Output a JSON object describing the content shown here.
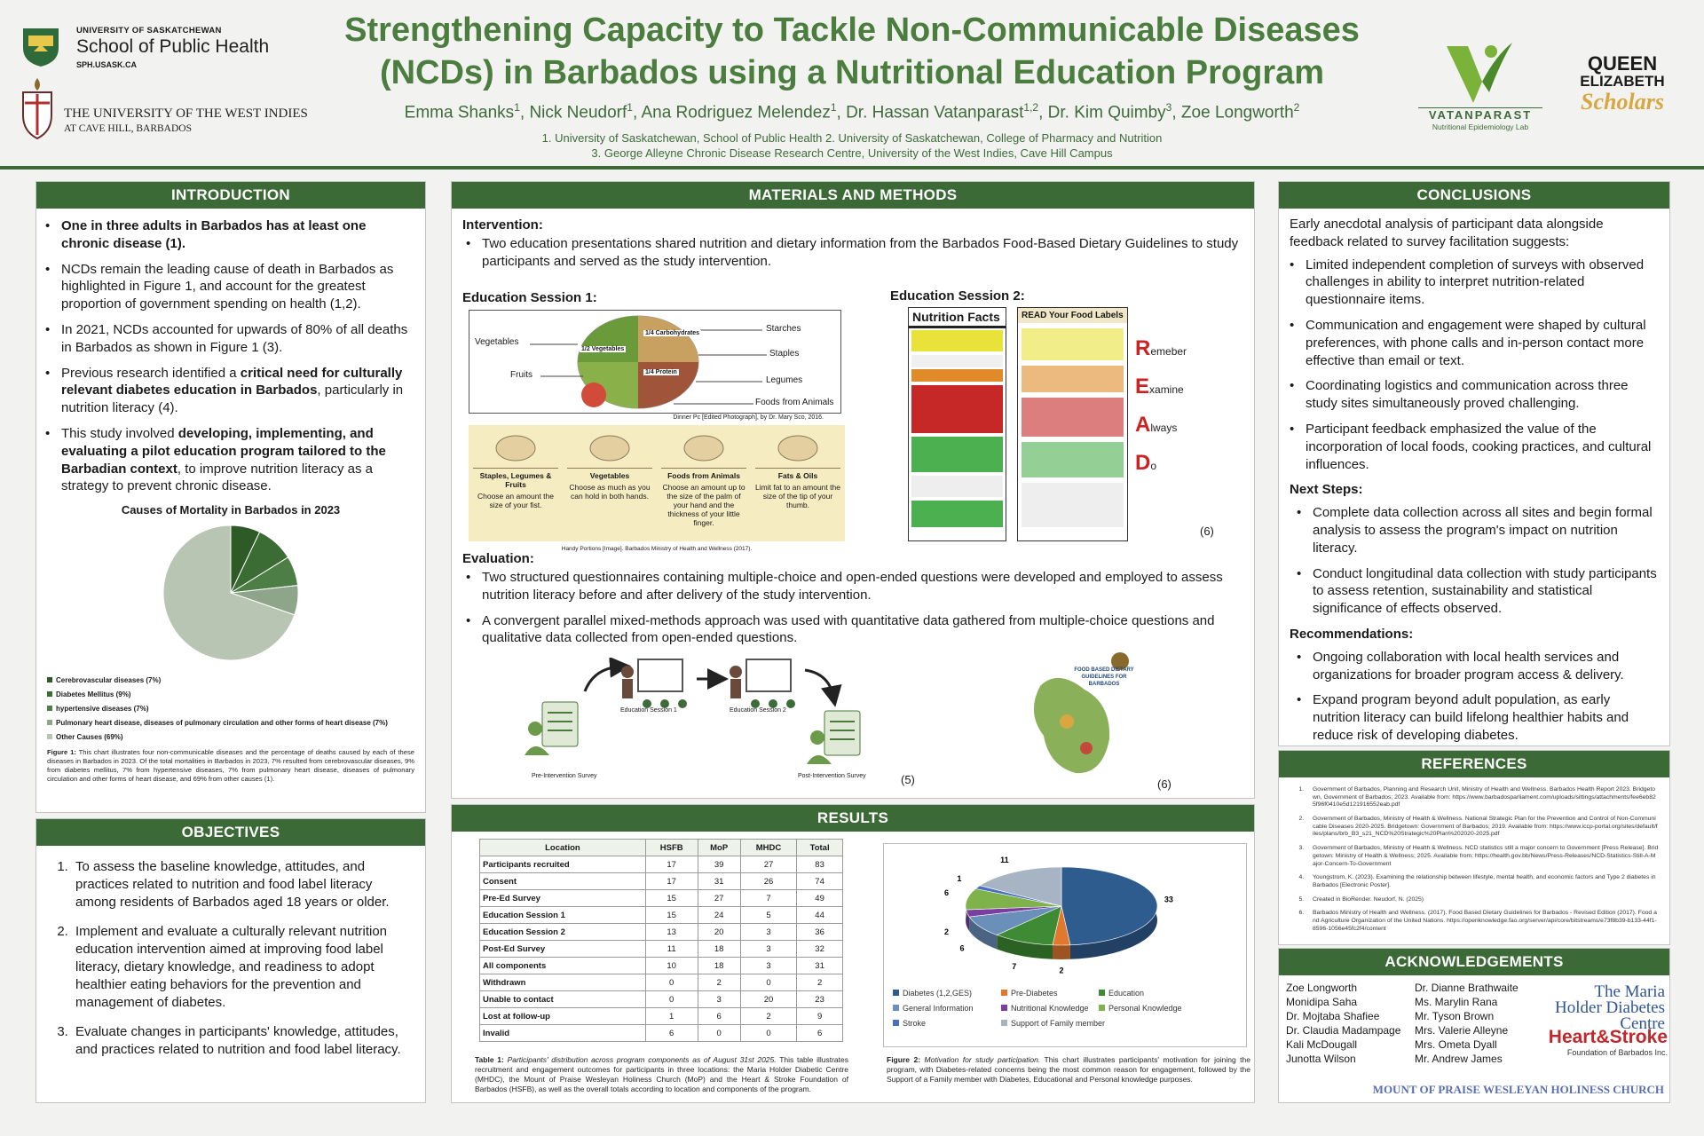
{
  "header": {
    "usask": "UNIVERSITY OF SASKATCHEWAN",
    "sph": "School of Public Health",
    "sph_url": "SPH.USASK.CA",
    "uwi": "THE UNIVERSITY OF THE WEST INDIES",
    "uwi_campus": "AT CAVE HILL, BARBADOS",
    "title_lines": [
      "Strengthening Capacity to Tackle Non-Communicable Diseases",
      "(NCDs) in Barbados using a Nutritional Education Program"
    ],
    "authors": [
      {
        "name": "Emma Shanks",
        "aff": "1"
      },
      {
        "name": "Nick Neudorf",
        "aff": "1"
      },
      {
        "name": "Ana Rodriguez Melendez",
        "aff": "1"
      },
      {
        "name": "Dr. Hassan Vatanparast",
        "aff": "1,2"
      },
      {
        "name": "Dr. Kim Quimby",
        "aff": "3"
      },
      {
        "name": "Zoe Longworth",
        "aff": "2"
      }
    ],
    "author_separator": ",",
    "affiliations": [
      "1. University of Saskatchewan, School of Public Health  2. University of Saskatchewan, College of Pharmacy and Nutrition",
      "3. George Alleyne Chronic Disease Research Centre, University of the West Indies, Cave Hill Campus"
    ],
    "lab_name": "VATANPARAST",
    "lab_subtitle": "Nutritional Epidemiology Lab",
    "qe_scholars": [
      "QUEEN",
      "ELIZABETH",
      "Scholars"
    ]
  },
  "introduction": {
    "heading": "INTRODUCTION",
    "bullets": [
      [
        {
          "bold": "One in three adults in Barbados has at least one chronic disease (1)."
        }
      ],
      [
        "NCDs remain the leading cause of death in Barbados as highlighted in Figure 1, and account for the greatest proportion of government spending on health (1,2)."
      ],
      [
        "In 2021, NCDs accounted for upwards of 80% of all deaths in Barbados as shown in Figure 1 (3)."
      ],
      [
        "Previous research identified a ",
        {
          "bold": "critical need for culturally relevant diabetes education in Barbados"
        },
        ", particularly in nutrition literacy (4)."
      ],
      [
        "This study involved ",
        {
          "bold": "developing, implementing, and evaluating a pilot education program tailored to the Barbadian context"
        },
        ", to improve nutrition literacy as a strategy to prevent chronic disease."
      ]
    ],
    "figure": {
      "type": "pie",
      "title": "Causes of Mortality in Barbados in 2023",
      "categories": [
        "Cerebrovascular diseases (7%)",
        "Diabetes Mellitus (9%)",
        "hypertensive diseases (7%)",
        "Pulmonary heart disease, diseases of pulmonary circulation and other forms of heart disease (7%)",
        "Other Causes (69%)"
      ],
      "values": [
        7,
        9,
        7,
        7,
        69
      ],
      "colors": [
        "#2d5a27",
        "#3b6c33",
        "#4d7e45",
        "#8fa58a",
        "#b8c5b3"
      ],
      "caption_label": "Figure 1:",
      "caption": "This chart illustrates four non-communicable diseases and the percentage of deaths caused by each of these diseases in Barbados in 2023. Of the total mortalities in Barbados in 2023, 7% resulted from cerebrovascular diseases, 9% from diabetes mellitus, 7% from hypertensive diseases, 7% from pulmonary heart disease, diseases of pulmonary circulation and other forms of heart disease, and 69% from other causes (1)."
    }
  },
  "objectives": {
    "heading": "OBJECTIVES",
    "items": [
      "To assess the baseline knowledge, attitudes, and practices related to nutrition and food label literacy among residents of Barbados aged 18 years or older.",
      "Implement and evaluate a culturally relevant nutrition education intervention aimed at improving food label literacy, dietary knowledge, and readiness to adopt healthier eating behaviors for the prevention and management of diabetes.",
      "Evaluate changes in participants' knowledge, attitudes, and practices related to nutrition and food label literacy."
    ]
  },
  "methods": {
    "heading": "MATERIALS AND METHODS",
    "intervention": {
      "heading": "Intervention:",
      "bullets": [
        "Two education presentations shared nutrition and dietary information from the Barbados Food-Based Dietary Guidelines to study participants and served as the study intervention."
      ]
    },
    "session1": {
      "heading": "Education Session 1:",
      "plate_labels": [
        "Vegetables",
        "Fruits",
        "Starches",
        "Staples",
        "Legumes",
        "Foods from Animals",
        "1/4 Carbohydrates",
        "1/2 Vegetables",
        "1/4 Protein"
      ],
      "plate_credit": "Dinner Pc [Edited Photograph], by Dr. Mary Sco, 2016.",
      "handy": [
        {
          "title": "Staples, Legumes & Fruits",
          "text": "Choose an amount the size of your fist."
        },
        {
          "title": "Vegetables",
          "text": "Choose as much as you can hold in both hands."
        },
        {
          "title": "Foods from Animals",
          "text": "Choose an amount up to the size of the palm of your hand and the thickness of your little finger."
        },
        {
          "title": "Fats & Oils",
          "text": "Limit fat to an amount the size of the tip of your thumb."
        }
      ],
      "handy_credit": "Handy Portions [Image]. Barbados Ministry of Health and Wellness (2017)."
    },
    "session2": {
      "heading": "Education Session 2:",
      "nutrition_title": "Nutrition Facts",
      "read_title": "READ Your Food Labels",
      "read_words": [
        "Remeber",
        "Examine",
        "Always",
        "Do"
      ],
      "citation": "(6)"
    },
    "evaluation": {
      "heading": "Evaluation:",
      "bullets": [
        "Two structured questionnaires containing multiple-choice and open-ended questions were developed and employed to assess nutrition literacy before and after delivery of the study intervention.",
        "A convergent parallel mixed-methods approach was used with quantitative data gathered from multiple-choice questions and qualitative data collected from open-ended questions."
      ]
    },
    "diagram": {
      "session1": "Education Session 1",
      "session2": "Education Session 2",
      "pre": "Pre-Intervention Survey",
      "post": "Post-Intervention Survey",
      "citation": "(5)",
      "map_title": "FOOD BASED DIETARY GUIDELINES FOR BARBADOS",
      "map_citation": "(6)"
    }
  },
  "results": {
    "heading": "RESULTS",
    "table": {
      "columns": [
        "Location",
        "HSFB",
        "MoP",
        "MHDC",
        "Total"
      ],
      "rows": [
        [
          "Participants recruited",
          17,
          39,
          27,
          83
        ],
        [
          "Consent",
          17,
          31,
          26,
          74
        ],
        [
          "Pre-Ed Survey",
          15,
          27,
          7,
          49
        ],
        [
          "Education Session 1",
          15,
          24,
          5,
          44
        ],
        [
          "Education Session 2",
          13,
          20,
          3,
          36
        ],
        [
          "Post-Ed Survey",
          11,
          18,
          3,
          32
        ],
        [
          "All components",
          10,
          18,
          3,
          31
        ],
        [
          "Withdrawn",
          0,
          2,
          0,
          2
        ],
        [
          "Unable to contact",
          0,
          3,
          20,
          23
        ],
        [
          "Lost at follow-up",
          1,
          6,
          2,
          9
        ],
        [
          "Invalid",
          6,
          0,
          0,
          6
        ]
      ],
      "caption_label": "Table 1:",
      "caption_title": "Participants' distribution across program components as of August 31st 2025.",
      "caption": "This table illustrates recruitment and engagement outcomes for participants in three locations: the Maria Holder Diabetic Centre (MHDC), the Mount of Praise Wesleyan Holiness Church (MoP) and the Heart & Stroke Foundation of Barbados (HSFB), as well as the overall totals according to location and components of the program."
    },
    "figure": {
      "type": "pie",
      "categories": [
        "Diabetes (1,2,GES)",
        "Pre-Diabetes",
        "Education",
        "General Information",
        "Nutritional Knowledge",
        "Personal Knowledge",
        "Stroke",
        "Support of Family member"
      ],
      "values": [
        33,
        2,
        7,
        6,
        2,
        6,
        1,
        11
      ],
      "colors": [
        "#2f5c8f",
        "#e0782e",
        "#3f8a34",
        "#6a8fb8",
        "#7a3ea0",
        "#7fb24a",
        "#4a6fc0",
        "#a7b4c4"
      ],
      "caption_label": "Figure 2:",
      "caption_title": "Motivation for study participation.",
      "caption": "This chart illustrates participants' motivation for joining the program, with Diabetes-related concerns being the most common reason for engagement, followed by the Support of a Family member with Diabetes, Educational and Personal knowledge purposes."
    }
  },
  "conclusions": {
    "heading": "CONCLUSIONS",
    "intro": "Early anecdotal analysis of participant data alongside feedback related to survey facilitation suggests:",
    "bullets": [
      "Limited independent completion of surveys with observed challenges in ability to interpret nutrition-related questionnaire items.",
      "Communication and engagement were shaped by cultural preferences, with phone calls and in-person contact more effective than email or text.",
      "Coordinating logistics and communication across three study sites simultaneously proved challenging.",
      "Participant feedback emphasized the value of the incorporation of local foods, cooking practices, and cultural influences."
    ],
    "next_steps_heading": "Next Steps:",
    "next_steps": [
      "Complete data collection across all sites and begin formal analysis to assess the program's impact on nutrition literacy.",
      "Conduct longitudinal data collection with study participants to assess retention, sustainability and statistical significance of effects observed."
    ],
    "recommendations_heading": "Recommendations:",
    "recommendations": [
      "Ongoing collaboration with local health services and organizations for broader program access & delivery.",
      "Expand program beyond adult population, as early nutrition literacy can build lifelong healthier habits and reduce risk of developing diabetes."
    ]
  },
  "references": {
    "heading": "REFERENCES",
    "items": [
      "Government of Barbados, Planning and Research Unit, Ministry of Health and Wellness. Barbados Health Report 2023. Bridgetown, Government of Barbados; 2023. Available from: https://www.barbadosparliament.com/uploads/sittings/attachments/fee6eb825f96f0410e5d121916552eab.pdf",
      "Government of Barbados, Ministry of Health & Wellness. National Strategic Plan for the Prevention and Control of Non-Communicable Diseases 2020-2025. Bridgetown: Government of Barbados; 2019. Available from: https://www.iccp-portal.org/sites/default/files/plans/brb_B3_s21_NCD%20Strategic%20Plan%202020-2025.pdf",
      "Government of Barbados, Ministry of Health & Wellness. NCD statistics still a major concern to Government [Press Release]. Bridgetown: Ministry of Health & Wellness; 2025. Available from: https://health.gov.bb/News/Press-Releases/NCD-Statistics-Still-A-Major-Concern-To-Government",
      "Youngstrom, K. (2023). Examining the relationship between lifestyle, mental health, and economic factors and Type 2 diabetes in Barbados [Electronic Poster].",
      "Created in BioRender. Neudorf, N. (2025)",
      "Barbados Ministry of Health and Wellness. (2017). Food Based Dietary Guidelines for Barbados - Revised Edition (2017). Food and Agriculture Organization of the United Nations. https://openknowledge.fao.org/server/api/core/bitstreams/e73f8b39-b133-44f1-8596-1056e45fc2f4/content"
    ]
  },
  "acknowledgements": {
    "heading": "ACKNOWLEDGEMENTS",
    "column1": [
      "Zoe Longworth",
      "Monidipa Saha",
      "Dr. Mojtaba Shafiee",
      "Dr. Claudia Madampage",
      "Kali McDougall",
      "Junotta Wilson"
    ],
    "column2": [
      "Dr. Dianne Brathwaite",
      "Ms. Marylin Rana",
      "Mr. Tyson Brown",
      "Mrs. Valerie Alleyne",
      "Mrs. Ometa Dyall",
      "Mr. Andrew James"
    ],
    "logos": [
      "The Maria Holder Diabetes Centre",
      "Heart&Stroke",
      "Foundation of Barbados Inc.",
      "MOUNT OF PRAISE WESLEYAN HOLINESS CHURCH"
    ]
  }
}
